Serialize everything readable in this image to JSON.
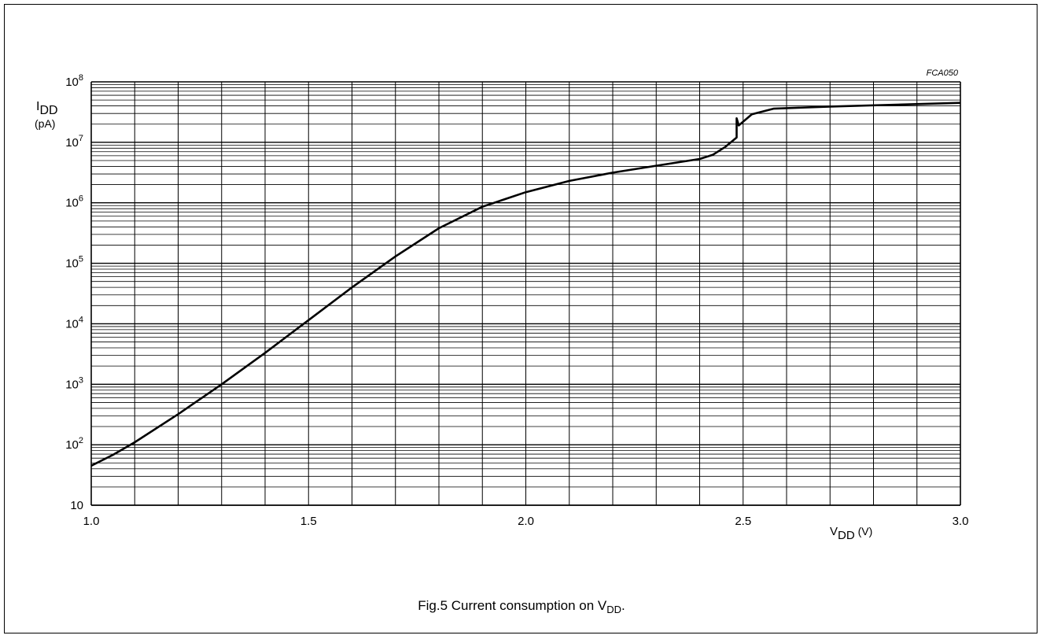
{
  "figure": {
    "caption_prefix": "Fig.5  Current consumption on V",
    "caption_sub": "DD",
    "caption_suffix": ".",
    "code": "FCA050"
  },
  "colors": {
    "line": "#000000",
    "grid": "#000000",
    "background": "#ffffff"
  },
  "chart_data": {
    "type": "line",
    "x_scale": "linear",
    "y_scale": "log",
    "xlim": [
      1.0,
      3.0
    ],
    "ylim": [
      10,
      100000000
    ],
    "grid": true,
    "x_ticks": [
      "1.0",
      "1.5",
      "2.0",
      "2.5",
      "3.0"
    ],
    "x_tick_values": [
      1.0,
      1.5,
      2.0,
      2.5,
      3.0
    ],
    "y_tick_labels": [
      {
        "base": "10",
        "exp": ""
      },
      {
        "base": "10",
        "exp": "2"
      },
      {
        "base": "10",
        "exp": "3"
      },
      {
        "base": "10",
        "exp": "4"
      },
      {
        "base": "10",
        "exp": "5"
      },
      {
        "base": "10",
        "exp": "6"
      },
      {
        "base": "10",
        "exp": "7"
      },
      {
        "base": "10",
        "exp": "8"
      }
    ],
    "xlabel": {
      "main": "V",
      "sub": "DD",
      "unit": " (V)"
    },
    "ylabel": {
      "main": "I",
      "sub": "DD",
      "unit": "(pA)"
    },
    "series": [
      {
        "x": [
          1.0,
          1.05,
          1.1,
          1.2,
          1.3,
          1.4,
          1.5,
          1.6,
          1.7,
          1.8,
          1.9,
          2.0,
          2.1,
          2.2,
          2.3,
          2.4,
          2.43,
          2.46,
          2.485,
          2.485,
          2.49,
          2.52,
          2.57,
          2.7,
          3.0
        ],
        "y": [
          45,
          68,
          110,
          320,
          1000,
          3300,
          11500,
          40000,
          130000,
          380000,
          860000,
          1500000,
          2300000,
          3150000,
          4100000,
          5300000,
          6200000,
          8500000,
          12000000,
          25000000,
          19000000,
          29000000,
          36000000,
          39000000,
          45000000
        ]
      }
    ]
  }
}
